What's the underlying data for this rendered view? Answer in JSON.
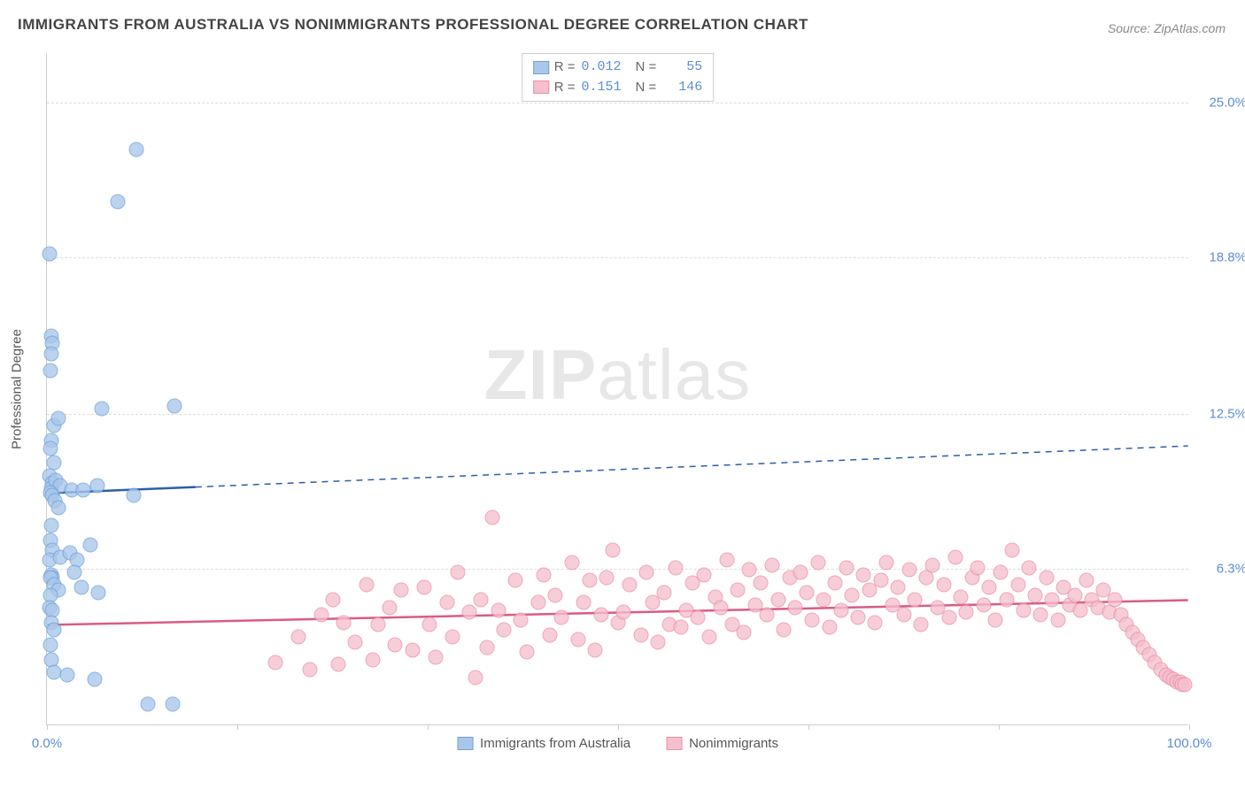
{
  "title": "IMMIGRANTS FROM AUSTRALIA VS NONIMMIGRANTS PROFESSIONAL DEGREE CORRELATION CHART",
  "source": "Source: ZipAtlas.com",
  "watermark_bold": "ZIP",
  "watermark_light": "atlas",
  "yaxis_title": "Professional Degree",
  "xaxis": {
    "min": 0,
    "max": 100,
    "ticks": [
      0,
      16.67,
      33.33,
      50,
      66.67,
      83.33,
      100
    ],
    "label_left": "0.0%",
    "label_right": "100.0%"
  },
  "yaxis": {
    "min": 0,
    "max": 27,
    "gridlines": [
      {
        "v": 6.3,
        "label": "6.3%"
      },
      {
        "v": 12.5,
        "label": "12.5%"
      },
      {
        "v": 18.8,
        "label": "18.8%"
      },
      {
        "v": 25.0,
        "label": "25.0%"
      }
    ]
  },
  "series": [
    {
      "name": "Immigrants from Australia",
      "color_fill": "#a9c7ea",
      "color_stroke": "#6fa0da",
      "line_color": "#2c5fa8",
      "R": "0.012",
      "N": "55",
      "trend": {
        "y_at_xmin": 9.3,
        "y_at_xmax": 11.2,
        "solid_until_x": 13
      },
      "points": [
        [
          0.2,
          18.9
        ],
        [
          0.4,
          15.6
        ],
        [
          0.5,
          15.3
        ],
        [
          0.4,
          14.9
        ],
        [
          0.3,
          14.2
        ],
        [
          0.6,
          12.0
        ],
        [
          1.0,
          12.3
        ],
        [
          0.4,
          11.4
        ],
        [
          0.3,
          11.1
        ],
        [
          0.6,
          10.5
        ],
        [
          0.2,
          10.0
        ],
        [
          0.5,
          9.7
        ],
        [
          0.4,
          9.5
        ],
        [
          0.8,
          9.8
        ],
        [
          1.2,
          9.6
        ],
        [
          0.3,
          9.3
        ],
        [
          0.5,
          9.2
        ],
        [
          0.7,
          9.0
        ],
        [
          1.0,
          8.7
        ],
        [
          2.2,
          9.4
        ],
        [
          3.2,
          9.4
        ],
        [
          4.4,
          9.6
        ],
        [
          4.8,
          12.7
        ],
        [
          7.6,
          9.2
        ],
        [
          11.2,
          12.8
        ],
        [
          0.4,
          8.0
        ],
        [
          0.3,
          7.4
        ],
        [
          0.5,
          7.0
        ],
        [
          0.2,
          6.6
        ],
        [
          1.2,
          6.7
        ],
        [
          2.0,
          6.9
        ],
        [
          2.6,
          6.6
        ],
        [
          3.8,
          7.2
        ],
        [
          0.4,
          6.0
        ],
        [
          0.5,
          5.9
        ],
        [
          0.3,
          5.9
        ],
        [
          0.6,
          5.6
        ],
        [
          1.0,
          5.4
        ],
        [
          0.3,
          5.2
        ],
        [
          0.2,
          4.7
        ],
        [
          0.5,
          4.6
        ],
        [
          0.4,
          4.1
        ],
        [
          0.6,
          3.8
        ],
        [
          0.3,
          3.2
        ],
        [
          0.4,
          2.6
        ],
        [
          0.6,
          2.1
        ],
        [
          1.8,
          2.0
        ],
        [
          4.2,
          1.8
        ],
        [
          2.4,
          6.1
        ],
        [
          7.8,
          23.1
        ],
        [
          6.2,
          21.0
        ],
        [
          11.0,
          0.8
        ],
        [
          8.8,
          0.8
        ],
        [
          4.5,
          5.3
        ],
        [
          3.0,
          5.5
        ]
      ]
    },
    {
      "name": "Nonimmigrants",
      "color_fill": "#f6bfce",
      "color_stroke": "#e98faa",
      "line_color": "#d95b86",
      "R": "0.151",
      "N": "146",
      "trend": {
        "y_at_xmin": 4.0,
        "y_at_xmax": 5.0,
        "solid_until_x": 100
      },
      "points": [
        [
          20,
          2.5
        ],
        [
          22,
          3.5
        ],
        [
          23,
          2.2
        ],
        [
          24,
          4.4
        ],
        [
          25,
          5.0
        ],
        [
          25.5,
          2.4
        ],
        [
          26,
          4.1
        ],
        [
          27,
          3.3
        ],
        [
          28,
          5.6
        ],
        [
          28.5,
          2.6
        ],
        [
          29,
          4.0
        ],
        [
          30,
          4.7
        ],
        [
          30.5,
          3.2
        ],
        [
          31,
          5.4
        ],
        [
          32,
          3.0
        ],
        [
          33,
          5.5
        ],
        [
          33.5,
          4.0
        ],
        [
          34,
          2.7
        ],
        [
          35,
          4.9
        ],
        [
          35.5,
          3.5
        ],
        [
          36,
          6.1
        ],
        [
          37,
          4.5
        ],
        [
          37.5,
          1.9
        ],
        [
          38,
          5.0
        ],
        [
          38.5,
          3.1
        ],
        [
          39,
          8.3
        ],
        [
          39.5,
          4.6
        ],
        [
          40,
          3.8
        ],
        [
          41,
          5.8
        ],
        [
          41.5,
          4.2
        ],
        [
          42,
          2.9
        ],
        [
          43,
          4.9
        ],
        [
          43.5,
          6.0
        ],
        [
          44,
          3.6
        ],
        [
          44.5,
          5.2
        ],
        [
          45,
          4.3
        ],
        [
          46,
          6.5
        ],
        [
          46.5,
          3.4
        ],
        [
          47,
          4.9
        ],
        [
          47.5,
          5.8
        ],
        [
          48,
          3.0
        ],
        [
          48.5,
          4.4
        ],
        [
          49,
          5.9
        ],
        [
          49.5,
          7.0
        ],
        [
          50,
          4.1
        ],
        [
          50.5,
          4.5
        ],
        [
          51,
          5.6
        ],
        [
          52,
          3.6
        ],
        [
          52.5,
          6.1
        ],
        [
          53,
          4.9
        ],
        [
          53.5,
          3.3
        ],
        [
          54,
          5.3
        ],
        [
          54.5,
          4.0
        ],
        [
          55,
          6.3
        ],
        [
          55.5,
          3.9
        ],
        [
          56,
          4.6
        ],
        [
          56.5,
          5.7
        ],
        [
          57,
          4.3
        ],
        [
          57.5,
          6.0
        ],
        [
          58,
          3.5
        ],
        [
          58.5,
          5.1
        ],
        [
          59,
          4.7
        ],
        [
          59.5,
          6.6
        ],
        [
          60,
          4.0
        ],
        [
          60.5,
          5.4
        ],
        [
          61,
          3.7
        ],
        [
          61.5,
          6.2
        ],
        [
          62,
          4.8
        ],
        [
          62.5,
          5.7
        ],
        [
          63,
          4.4
        ],
        [
          63.5,
          6.4
        ],
        [
          64,
          5.0
        ],
        [
          64.5,
          3.8
        ],
        [
          65,
          5.9
        ],
        [
          65.5,
          4.7
        ],
        [
          66,
          6.1
        ],
        [
          66.5,
          5.3
        ],
        [
          67,
          4.2
        ],
        [
          67.5,
          6.5
        ],
        [
          68,
          5.0
        ],
        [
          68.5,
          3.9
        ],
        [
          69,
          5.7
        ],
        [
          69.5,
          4.6
        ],
        [
          70,
          6.3
        ],
        [
          70.5,
          5.2
        ],
        [
          71,
          4.3
        ],
        [
          71.5,
          6.0
        ],
        [
          72,
          5.4
        ],
        [
          72.5,
          4.1
        ],
        [
          73,
          5.8
        ],
        [
          73.5,
          6.5
        ],
        [
          74,
          4.8
        ],
        [
          74.5,
          5.5
        ],
        [
          75,
          4.4
        ],
        [
          75.5,
          6.2
        ],
        [
          76,
          5.0
        ],
        [
          76.5,
          4.0
        ],
        [
          77,
          5.9
        ],
        [
          77.5,
          6.4
        ],
        [
          78,
          4.7
        ],
        [
          78.5,
          5.6
        ],
        [
          79,
          4.3
        ],
        [
          79.5,
          6.7
        ],
        [
          80,
          5.1
        ],
        [
          80.5,
          4.5
        ],
        [
          81,
          5.9
        ],
        [
          81.5,
          6.3
        ],
        [
          82,
          4.8
        ],
        [
          82.5,
          5.5
        ],
        [
          83,
          4.2
        ],
        [
          83.5,
          6.1
        ],
        [
          84,
          5.0
        ],
        [
          84.5,
          7.0
        ],
        [
          85,
          5.6
        ],
        [
          85.5,
          4.6
        ],
        [
          86,
          6.3
        ],
        [
          86.5,
          5.2
        ],
        [
          87,
          4.4
        ],
        [
          87.5,
          5.9
        ],
        [
          88,
          5.0
        ],
        [
          88.5,
          4.2
        ],
        [
          89,
          5.5
        ],
        [
          89.5,
          4.8
        ],
        [
          90,
          5.2
        ],
        [
          90.5,
          4.6
        ],
        [
          91,
          5.8
        ],
        [
          91.5,
          5.0
        ],
        [
          92,
          4.7
        ],
        [
          92.5,
          5.4
        ],
        [
          93,
          4.5
        ],
        [
          93.5,
          5.0
        ],
        [
          94,
          4.4
        ],
        [
          94.5,
          4.0
        ],
        [
          95,
          3.7
        ],
        [
          95.5,
          3.4
        ],
        [
          96,
          3.1
        ],
        [
          96.5,
          2.8
        ],
        [
          97,
          2.5
        ],
        [
          97.5,
          2.2
        ],
        [
          98,
          2.0
        ],
        [
          98.3,
          1.9
        ],
        [
          98.6,
          1.8
        ],
        [
          98.9,
          1.7
        ],
        [
          99.2,
          1.7
        ],
        [
          99.4,
          1.6
        ],
        [
          99.6,
          1.6
        ]
      ]
    }
  ],
  "legend_bottom": [
    "Immigrants from Australia",
    "Nonimmigrants"
  ]
}
